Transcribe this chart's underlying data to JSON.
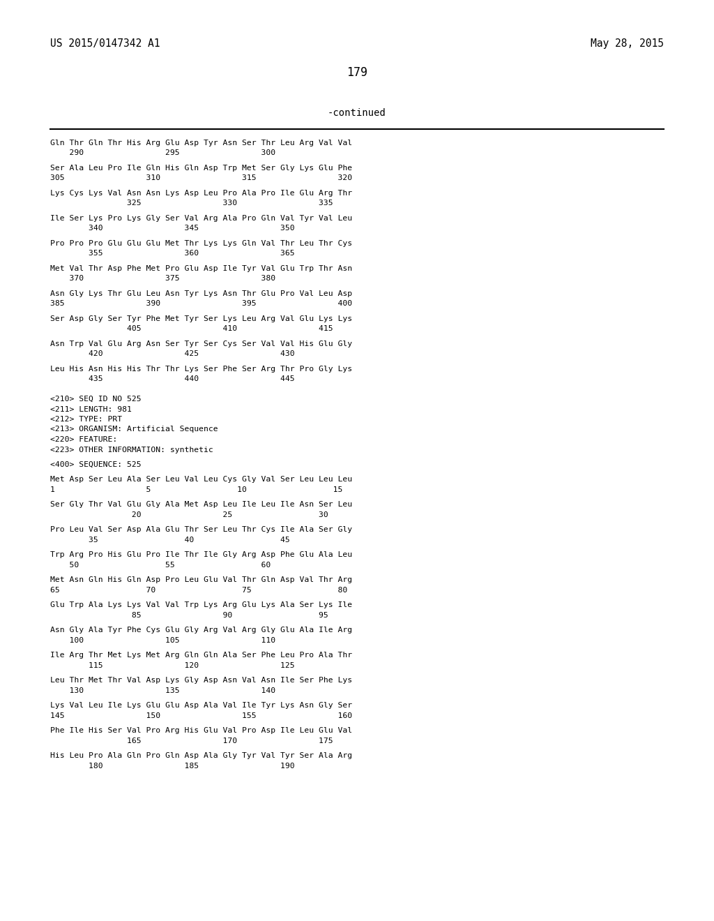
{
  "bg_color": "#ffffff",
  "header_left": "US 2015/0147342 A1",
  "header_right": "May 28, 2015",
  "page_number": "179",
  "continued_label": "-continued",
  "font_family": "monospace",
  "header_fontsize": 10.5,
  "page_num_fontsize": 12,
  "continued_fontsize": 10.0,
  "body_fontsize": 8.2,
  "body_lines": [
    "Gln Thr Gln Thr His Arg Glu Asp Tyr Asn Ser Thr Leu Arg Val Val",
    "    290                 295                 300",
    "",
    "Ser Ala Leu Pro Ile Gln His Gln Asp Trp Met Ser Gly Lys Glu Phe",
    "305                 310                 315                 320",
    "",
    "Lys Cys Lys Val Asn Asn Lys Asp Leu Pro Ala Pro Ile Glu Arg Thr",
    "                325                 330                 335",
    "",
    "Ile Ser Lys Pro Lys Gly Ser Val Arg Ala Pro Gln Val Tyr Val Leu",
    "        340                 345                 350",
    "",
    "Pro Pro Pro Glu Glu Glu Met Thr Lys Lys Gln Val Thr Leu Thr Cys",
    "        355                 360                 365",
    "",
    "Met Val Thr Asp Phe Met Pro Glu Asp Ile Tyr Val Glu Trp Thr Asn",
    "    370                 375                 380",
    "",
    "Asn Gly Lys Thr Glu Leu Asn Tyr Lys Asn Thr Glu Pro Val Leu Asp",
    "385                 390                 395                 400",
    "",
    "Ser Asp Gly Ser Tyr Phe Met Tyr Ser Lys Leu Arg Val Glu Lys Lys",
    "                405                 410                 415",
    "",
    "Asn Trp Val Glu Arg Asn Ser Tyr Ser Cys Ser Val Val His Glu Gly",
    "        420                 425                 430",
    "",
    "Leu His Asn His His Thr Thr Lys Ser Phe Ser Arg Thr Pro Gly Lys",
    "        435                 440                 445",
    "",
    "",
    "<210> SEQ ID NO 525",
    "<211> LENGTH: 981",
    "<212> TYPE: PRT",
    "<213> ORGANISM: Artificial Sequence",
    "<220> FEATURE:",
    "<223> OTHER INFORMATION: synthetic",
    "",
    "<400> SEQUENCE: 525",
    "",
    "Met Asp Ser Leu Ala Ser Leu Val Leu Cys Gly Val Ser Leu Leu Leu",
    "1                   5                  10                  15",
    "",
    "Ser Gly Thr Val Glu Gly Ala Met Asp Leu Ile Leu Ile Asn Ser Leu",
    "                 20                 25                  30",
    "",
    "Pro Leu Val Ser Asp Ala Glu Thr Ser Leu Thr Cys Ile Ala Ser Gly",
    "        35                  40                  45",
    "",
    "Trp Arg Pro His Glu Pro Ile Thr Ile Gly Arg Asp Phe Glu Ala Leu",
    "    50                  55                  60",
    "",
    "Met Asn Gln His Gln Asp Pro Leu Glu Val Thr Gln Asp Val Thr Arg",
    "65                  70                  75                  80",
    "",
    "Glu Trp Ala Lys Lys Val Val Trp Lys Arg Glu Lys Ala Ser Lys Ile",
    "                 85                 90                  95",
    "",
    "Asn Gly Ala Tyr Phe Cys Glu Gly Arg Val Arg Gly Glu Ala Ile Arg",
    "    100                 105                 110",
    "",
    "Ile Arg Thr Met Lys Met Arg Gln Gln Ala Ser Phe Leu Pro Ala Thr",
    "        115                 120                 125",
    "",
    "Leu Thr Met Thr Val Asp Lys Gly Asp Asn Val Asn Ile Ser Phe Lys",
    "    130                 135                 140",
    "",
    "Lys Val Leu Ile Lys Glu Glu Asp Ala Val Ile Tyr Lys Asn Gly Ser",
    "145                 150                 155                 160",
    "",
    "Phe Ile His Ser Val Pro Arg His Glu Val Pro Asp Ile Leu Glu Val",
    "                165                 170                 175",
    "",
    "His Leu Pro Ala Gln Pro Gln Asp Ala Gly Tyr Val Tyr Ser Ala Arg",
    "        180                 185                 190"
  ]
}
